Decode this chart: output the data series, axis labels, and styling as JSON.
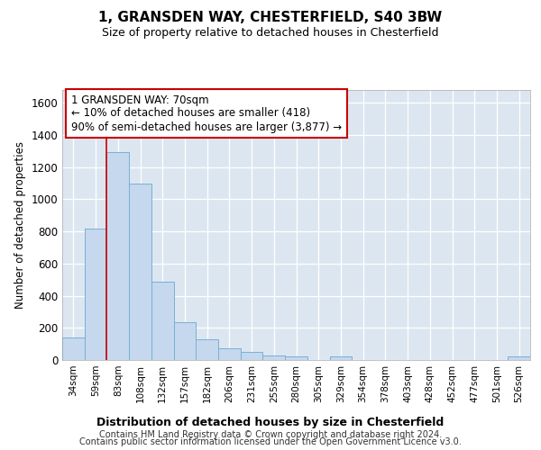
{
  "title1": "1, GRANSDEN WAY, CHESTERFIELD, S40 3BW",
  "title2": "Size of property relative to detached houses in Chesterfield",
  "xlabel": "Distribution of detached houses by size in Chesterfield",
  "ylabel": "Number of detached properties",
  "categories": [
    "34sqm",
    "59sqm",
    "83sqm",
    "108sqm",
    "132sqm",
    "157sqm",
    "182sqm",
    "206sqm",
    "231sqm",
    "255sqm",
    "280sqm",
    "305sqm",
    "329sqm",
    "354sqm",
    "378sqm",
    "403sqm",
    "428sqm",
    "452sqm",
    "477sqm",
    "501sqm",
    "526sqm"
  ],
  "values": [
    140,
    815,
    1295,
    1095,
    490,
    235,
    130,
    75,
    50,
    30,
    20,
    0,
    20,
    0,
    0,
    0,
    0,
    0,
    0,
    0,
    20
  ],
  "bar_color": "#c5d8ee",
  "bar_edge_color": "#7aafd4",
  "background_color": "#dce6f1",
  "grid_color": "#ffffff",
  "vline_x": 1.5,
  "vline_color": "#cc0000",
  "annotation_text": "1 GRANSDEN WAY: 70sqm\n← 10% of detached houses are smaller (418)\n90% of semi-detached houses are larger (3,877) →",
  "annotation_box_color": "#ffffff",
  "annotation_box_edge": "#cc0000",
  "ylim": [
    0,
    1680
  ],
  "yticks": [
    0,
    200,
    400,
    600,
    800,
    1000,
    1200,
    1400,
    1600
  ],
  "footer1": "Contains HM Land Registry data © Crown copyright and database right 2024.",
  "footer2": "Contains public sector information licensed under the Open Government Licence v3.0."
}
